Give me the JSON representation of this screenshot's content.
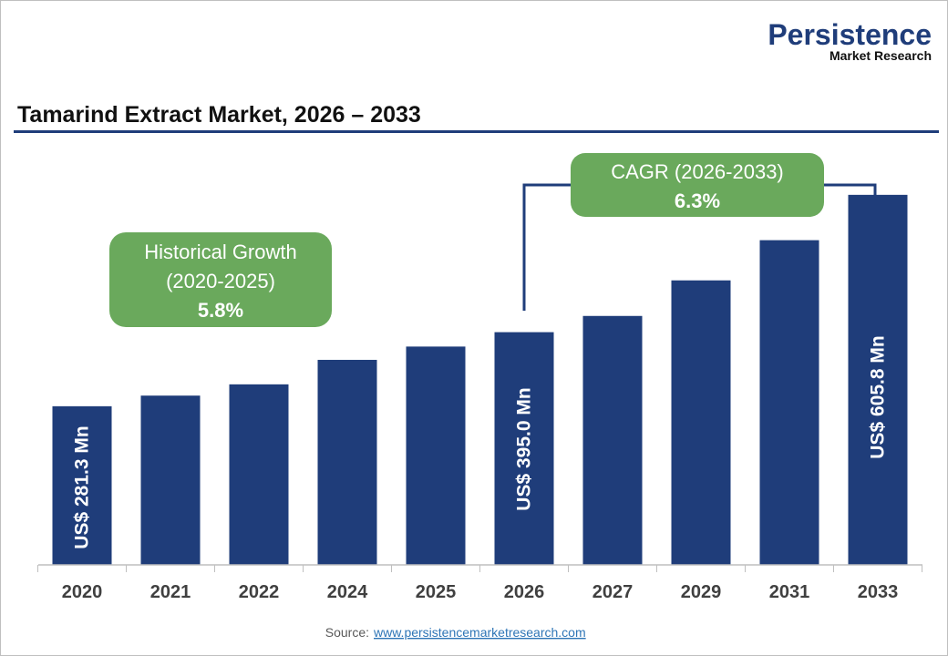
{
  "logo": {
    "line1": "Persistence",
    "line2": "Market Research"
  },
  "chart_data": {
    "type": "bar",
    "title": "Tamarind Extract Market, 2026 – 2033",
    "categories": [
      "2020",
      "2021",
      "2022",
      "2024",
      "2025",
      "2026",
      "2027",
      "2029",
      "2031",
      "2033"
    ],
    "values": [
      281.3,
      297.6,
      314.9,
      352.5,
      372.9,
      395.0,
      419.9,
      474.5,
      536.2,
      605.8
    ],
    "data_labels": {
      "0": "US$ 281.3 Mn",
      "5": "US$ 395.0 Mn",
      "9": "US$ 605.8 Mn"
    },
    "unit": "US$ Mn",
    "grid": false,
    "bar_color": "#1f3d7a",
    "annotations": {
      "historical": {
        "line1": "Historical Growth",
        "line2": "(2020-2025)",
        "value": "5.8%"
      },
      "cagr": {
        "line1": "CAGR (2026-2033)",
        "value": "6.3%"
      },
      "bubble_color": "#6aa95c"
    }
  },
  "source": {
    "label": "Source:",
    "link": "www.persistencemarketresearch.com"
  }
}
